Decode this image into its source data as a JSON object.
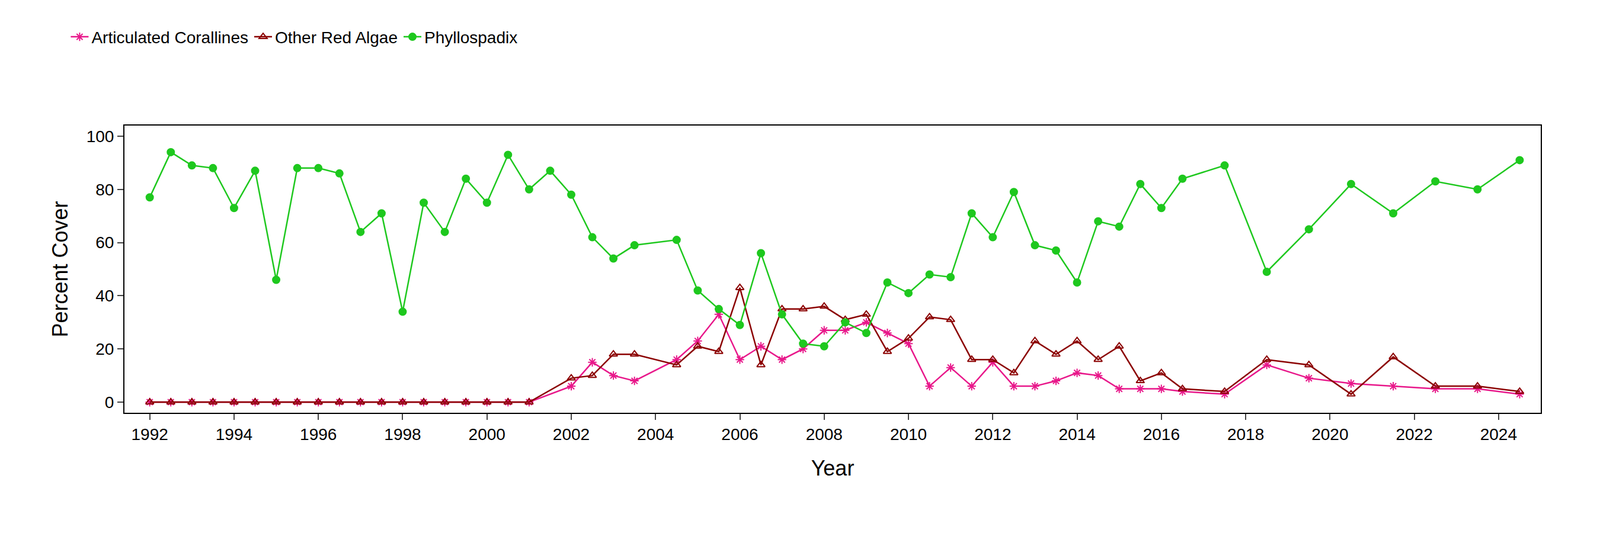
{
  "chart_data": {
    "type": "line",
    "x_label": "Year",
    "y_label": "Percent Cover",
    "xlim": [
      1991.4,
      2025.0
    ],
    "xticks": [
      1992,
      1994,
      1996,
      1998,
      2000,
      2002,
      2004,
      2006,
      2008,
      2010,
      2012,
      2014,
      2016,
      2018,
      2020,
      2022,
      2024
    ],
    "ylim": [
      -4,
      104
    ],
    "yticks": [
      0,
      20,
      40,
      60,
      80,
      100
    ],
    "grid": false,
    "legend": "top-left",
    "series": [
      {
        "name": "Articulated Corallines",
        "color": "#e8178a",
        "marker": "asterisk",
        "x": [
          1992,
          1992.5,
          1993,
          1993.5,
          1994,
          1994.5,
          1995,
          1995.5,
          1996,
          1996.5,
          1997,
          1997.5,
          1998,
          1998.5,
          1999,
          1999.5,
          2000,
          2000.5,
          2001,
          2002,
          2002.5,
          2003,
          2003.5,
          2004.5,
          2005,
          2005.5,
          2006,
          2006.5,
          2007,
          2007.5,
          2008,
          2008.5,
          2009,
          2009.5,
          2010,
          2010.5,
          2011,
          2011.5,
          2012,
          2012.5,
          2013,
          2013.5,
          2014,
          2014.5,
          2015,
          2015.5,
          2016,
          2016.5,
          2017.5,
          2018.5,
          2019.5,
          2020.5,
          2021.5,
          2022.5,
          2023.5,
          2024.5
        ],
        "values": [
          0,
          0,
          0,
          0,
          0,
          0,
          0,
          0,
          0,
          0,
          0,
          0,
          0,
          0,
          0,
          0,
          0,
          0,
          0,
          6,
          15,
          10,
          8,
          16,
          23,
          33,
          16,
          21,
          16,
          20,
          27,
          27,
          30,
          26,
          22,
          6,
          13,
          6,
          15,
          6,
          6,
          8,
          11,
          10,
          5,
          5,
          5,
          4,
          3,
          14,
          9,
          7,
          6,
          5,
          5,
          3
        ]
      },
      {
        "name": "Other Red Algae",
        "color": "#8b0000",
        "marker": "triangle-open",
        "x": [
          1992,
          1992.5,
          1993,
          1993.5,
          1994,
          1994.5,
          1995,
          1995.5,
          1996,
          1996.5,
          1997,
          1997.5,
          1998,
          1998.5,
          1999,
          1999.5,
          2000,
          2000.5,
          2001,
          2002,
          2002.5,
          2003,
          2003.5,
          2004.5,
          2005,
          2005.5,
          2006,
          2006.5,
          2007,
          2007.5,
          2008,
          2008.5,
          2009,
          2009.5,
          2010,
          2010.5,
          2011,
          2011.5,
          2012,
          2012.5,
          2013,
          2013.5,
          2014,
          2014.5,
          2015,
          2015.5,
          2016,
          2016.5,
          2017.5,
          2018.5,
          2019.5,
          2020.5,
          2021.5,
          2022.5,
          2023.5,
          2024.5
        ],
        "values": [
          0,
          0,
          0,
          0,
          0,
          0,
          0,
          0,
          0,
          0,
          0,
          0,
          0,
          0,
          0,
          0,
          0,
          0,
          0,
          9,
          10,
          18,
          18,
          14,
          21,
          19,
          43,
          14,
          35,
          35,
          36,
          31,
          33,
          19,
          24,
          32,
          31,
          16,
          16,
          11,
          23,
          18,
          23,
          16,
          21,
          8,
          11,
          5,
          4,
          16,
          14,
          3,
          17,
          6,
          6,
          4
        ]
      },
      {
        "name": "Phyllospadix",
        "color": "#1ec81e",
        "marker": "circle",
        "x": [
          1992,
          1992.5,
          1993,
          1993.5,
          1994,
          1994.5,
          1995,
          1995.5,
          1996,
          1996.5,
          1997,
          1997.5,
          1998,
          1998.5,
          1999,
          1999.5,
          2000,
          2000.5,
          2001,
          2001.5,
          2002,
          2002.5,
          2003,
          2003.5,
          2004.5,
          2005,
          2005.5,
          2006,
          2006.5,
          2007,
          2007.5,
          2008,
          2008.5,
          2009,
          2009.5,
          2010,
          2010.5,
          2011,
          2011.5,
          2012,
          2012.5,
          2013,
          2013.5,
          2014,
          2014.5,
          2015,
          2015.5,
          2016,
          2016.5,
          2017.5,
          2018.5,
          2019.5,
          2020.5,
          2021.5,
          2022.5,
          2023.5,
          2024.5
        ],
        "values": [
          77,
          94,
          89,
          88,
          73,
          87,
          46,
          88,
          88,
          86,
          64,
          71,
          34,
          75,
          64,
          84,
          75,
          93,
          80,
          87,
          78,
          62,
          54,
          59,
          61,
          42,
          35,
          29,
          56,
          33,
          22,
          21,
          30,
          26,
          45,
          41,
          48,
          47,
          71,
          62,
          79,
          59,
          57,
          45,
          68,
          66,
          82,
          73,
          84,
          89,
          49,
          65,
          82,
          71,
          83,
          80,
          91
        ]
      }
    ]
  }
}
